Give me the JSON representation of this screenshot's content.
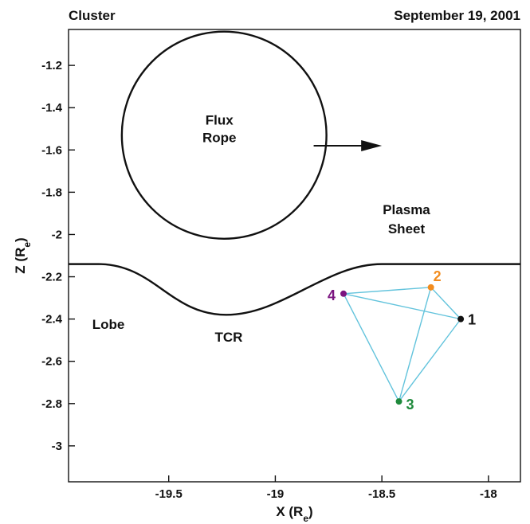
{
  "header": {
    "left": "Cluster",
    "right": "September 19, 2001"
  },
  "colors": {
    "tetra_edge": "#62c3dc",
    "sc1": "#111111",
    "sc2": "#f28c1e",
    "sc3": "#1f8a3c",
    "sc4": "#7b1580"
  },
  "axes": {
    "xlabel": "X (R",
    "xlabel_sub": "e",
    "xlabel_close": ")",
    "ylabel": "Z (R",
    "ylabel_sub": "e",
    "ylabel_close": ")",
    "xlim": [
      -19.97,
      -17.85
    ],
    "ylim": [
      -3.17,
      -1.03
    ],
    "x_ticks": [
      -19.5,
      -19,
      -18.5,
      -18
    ],
    "x_tick_labels": [
      "-19.5",
      "-19",
      "-18.5",
      "-18"
    ],
    "y_ticks": [
      -1.2,
      -1.4,
      -1.6,
      -1.8,
      -2,
      -2.2,
      -2.4,
      -2.6,
      -2.8,
      -3
    ],
    "y_tick_labels": [
      "-1.2",
      "-1.4",
      "-1.6",
      "-1.8",
      "-2",
      "-2.2",
      "-2.4",
      "-2.6",
      "-2.8",
      "-3"
    ]
  },
  "labels": {
    "flux_rope_1": "Flux",
    "flux_rope_2": "Rope",
    "plasma_sheet_1": "Plasma",
    "plasma_sheet_2": "Sheet",
    "lobe": "Lobe",
    "tcr": "TCR"
  },
  "flux_rope": {
    "cx": -19.24,
    "cz": -1.53,
    "radius_x": 0.48,
    "radius_z": 0.49
  },
  "arrow": {
    "from": [
      -18.82,
      -1.58
    ],
    "to": [
      -18.5,
      -1.58
    ]
  },
  "boundary": {
    "flat_left_x": -19.97,
    "flat_right_x": -17.85,
    "baseline_z": -2.14,
    "dip_start_x": -19.83,
    "dip_end_x": -18.5,
    "dip_center_x": -19.23,
    "dip_bottom_z": -2.38
  },
  "spacecraft": [
    {
      "id": "1",
      "x": -18.13,
      "z": -2.4
    },
    {
      "id": "2",
      "x": -18.27,
      "z": -2.25
    },
    {
      "id": "3",
      "x": -18.42,
      "z": -2.79
    },
    {
      "id": "4",
      "x": -18.68,
      "z": -2.28
    }
  ]
}
